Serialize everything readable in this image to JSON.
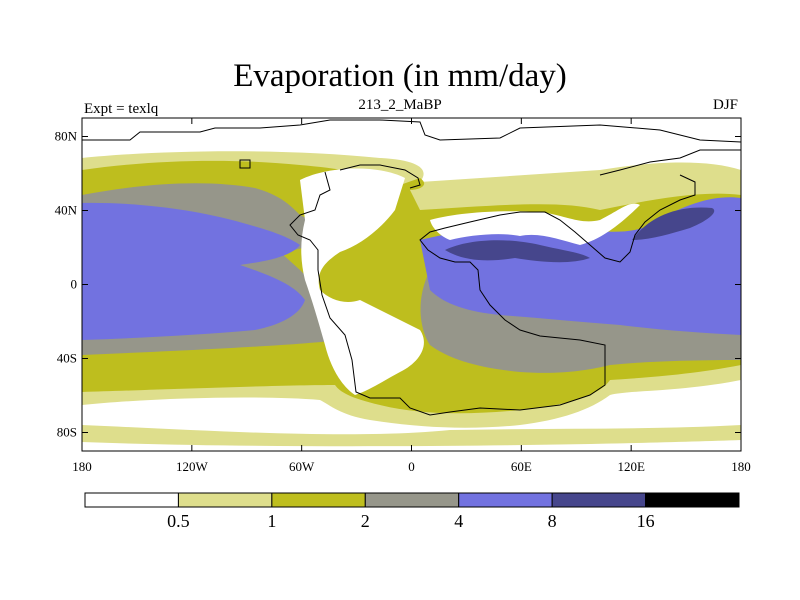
{
  "title": "Evaporation (in mm/day)",
  "subtitle_left": "Expt = texlq",
  "subtitle_center": "213_2_MaBP",
  "subtitle_right": "DJF",
  "map": {
    "lon_range": [
      -180,
      180
    ],
    "lat_range": [
      -90,
      90
    ],
    "x_ticks": [
      {
        "value": -180,
        "label": "180"
      },
      {
        "value": -120,
        "label": "120W"
      },
      {
        "value": -60,
        "label": "60W"
      },
      {
        "value": 0,
        "label": "0"
      },
      {
        "value": 60,
        "label": "60E"
      },
      {
        "value": 120,
        "label": "120E"
      },
      {
        "value": 180,
        "label": "180"
      }
    ],
    "y_ticks": [
      {
        "value": 80,
        "label": "80N"
      },
      {
        "value": 40,
        "label": "40N"
      },
      {
        "value": 0,
        "label": "0"
      },
      {
        "value": -40,
        "label": "40S"
      },
      {
        "value": -80,
        "label": "80S"
      }
    ]
  },
  "colorbar": {
    "colors": [
      "#ffffff",
      "#dede8c",
      "#bebe1e",
      "#96968a",
      "#7272e0",
      "#46468c",
      "#000000"
    ],
    "levels": [
      "0.5",
      "1",
      "2",
      "4",
      "8",
      "16"
    ]
  }
}
